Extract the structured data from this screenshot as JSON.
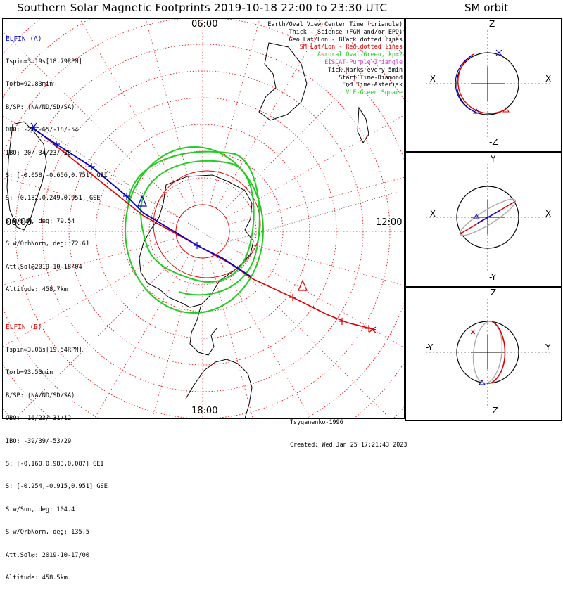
{
  "title": "Southern Solar Magnetic Footprints 2019-10-18 22:00 to 23:30 UTC",
  "sm_orbit_title": "SM orbit",
  "elfin_a": {
    "name": "ELFIN (A)",
    "color": "#0000cc",
    "lines": [
      "Tspin=3.19s[18.79RPM]",
      "Torb=92.83min",
      "B/SP: (NA/ND/SD/SA)",
      "OBO: -22/-65/-18/-54",
      "IBO: 20/-34/23/-38",
      "S: [-0.058,-0.656,0.751] GEI",
      "S: [0.182,0.249,0.951] GSE",
      "S w/Sun, deg: 79.54",
      "S w/OrbNorm, deg: 72.61",
      "Att.Sol@2019-10-18/04",
      "Altitude: 458.7km"
    ]
  },
  "elfin_b": {
    "name": "ELFIN (B)",
    "color": "#dd0000",
    "lines": [
      "Tspin=3.06s[19.54RPM]",
      "Torb=93.53min",
      "B/SP: (NA/ND/SD/SA)",
      "OBO: -16/23/-31/12",
      "IBO: -39/39/-53/29",
      "S: [-0.160,0.983,0.087] GEI",
      "S: [-0.254,-0.915,0.951] GSE",
      "S w/Sun, deg: 104.4",
      "S w/OrbNorm, deg: 135.5",
      "Att.Sol@: 2019-10-17/00",
      "Altitude: 458.5km"
    ]
  },
  "legend": [
    {
      "text": "Earth/Oval View Center Time (triangle)",
      "color": "#000000"
    },
    {
      "text": "Thick - Science (FGM and/or EPD)",
      "color": "#000000"
    },
    {
      "text": "Geo Lat/Lon - Black dotted lines",
      "color": "#000000"
    },
    {
      "text": "SM Lat/Lon - Red dotted lines",
      "color": "#dd0000"
    },
    {
      "text": "Auroral Oval-Green, kp=2",
      "color": "#22cc22"
    },
    {
      "text": "EISCAT-Purple Triangle",
      "color": "#cc44cc"
    },
    {
      "text": "Tick Marks every 5min",
      "color": "#000000"
    },
    {
      "text": "Start Time-Diamond",
      "color": "#000000"
    },
    {
      "text": "End Time-Asterisk",
      "color": "#000000"
    },
    {
      "text": "VLF-Green Square",
      "color": "#22cc22"
    }
  ],
  "hour_labels": {
    "top": "06:00",
    "left": "00:00",
    "right": "12:00",
    "bottom": "18:00"
  },
  "credit": {
    "author": "Tsyganenko-1996",
    "created": "Created: Wed Jan 25 17:21:43 2023"
  },
  "sm_panels": [
    {
      "name": "xz",
      "top": "Z",
      "bottom": "-Z",
      "left": "-X",
      "right": "X"
    },
    {
      "name": "xy",
      "top": "Y",
      "bottom": "-Y",
      "left": "-X",
      "right": "X"
    },
    {
      "name": "yz",
      "top": "Z",
      "bottom": "-Z",
      "left": "-Y",
      "right": "Y"
    }
  ],
  "colors": {
    "geo_grid": "#000000",
    "sm_grid": "#dd0000",
    "oval": "#22cc22",
    "track_a": "#0000cc",
    "track_b": "#dd0000",
    "orbit_gray": "#aaaaaa"
  }
}
